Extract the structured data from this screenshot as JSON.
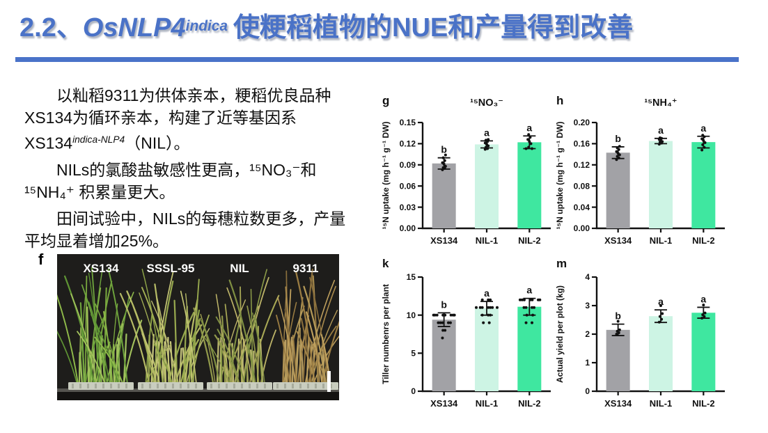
{
  "title": {
    "number": "2.2、",
    "gene": "OsNLP4",
    "gene_sup": "indica",
    "text": "使粳稻植物的NUE和产量得到改善"
  },
  "accent_color": "#4a72c7",
  "body": {
    "p1_a": "以籼稻9311为供体亲本，粳稻优良品种XS134为循环亲本，构建了近等基因系XS134",
    "p1_sup": "indica-NLP4",
    "p1_b": "（NIL）。",
    "p2": "NILs的氯酸盐敏感性更高，¹⁵NO₃⁻和¹⁵NH₄⁺ 积累量更大。",
    "p3": "田间试验中，NILs的每穗粒数更多，产量平均显着增加25%。"
  },
  "photo": {
    "panel": "f",
    "bg": "#1e1d1b",
    "label_color": "#ffffff",
    "labels": [
      "XS134",
      "SSSL-95",
      "NIL",
      "9311"
    ],
    "centers": [
      63,
      163,
      262,
      357
    ],
    "blade_palettes": [
      [
        "#5f9434",
        "#79a83e",
        "#8fba4a",
        "#a3c25c",
        "#6da23c"
      ],
      [
        "#8aa046",
        "#a3b054",
        "#b7bc66",
        "#97a84e",
        "#c3c474"
      ],
      [
        "#90984a",
        "#a8a855",
        "#bdb468",
        "#8a9a48",
        "#7f8f42"
      ],
      [
        "#9a7c42",
        "#a8894c",
        "#b59a58",
        "#8a6f3c",
        "#c0a15e"
      ]
    ],
    "stem_colors": [
      "#9fc25e",
      "#c9c87e",
      "#c2bd74",
      "#b99f62"
    ],
    "tray_color": "#c9cdbf",
    "has_scale_bar": true
  },
  "chart_data": [
    {
      "type": "bar",
      "panel": "g",
      "title": "¹⁵NO₃⁻",
      "ylabel": "¹⁵N uptake (mg h⁻¹ g⁻¹ DW)",
      "ymax": 0.15,
      "ystep": 0.03,
      "decimals": 2,
      "categories": [
        "XS134",
        "NIL-1",
        "NIL-2"
      ],
      "bars": [
        {
          "value": 0.092,
          "err": 0.008,
          "letter": "b",
          "color": "#a2a2a6",
          "points": [
            0.083,
            0.085,
            0.086,
            0.088,
            0.091,
            0.093,
            0.096,
            0.1,
            0.104
          ]
        },
        {
          "value": 0.119,
          "err": 0.005,
          "letter": "a",
          "color": "#cdf4e4",
          "points": [
            0.112,
            0.113,
            0.115,
            0.117,
            0.119,
            0.121,
            0.123,
            0.125,
            0.126
          ]
        },
        {
          "value": 0.122,
          "err": 0.009,
          "letter": "a",
          "color": "#3fe7a0",
          "points": [
            0.113,
            0.113,
            0.115,
            0.12,
            0.123,
            0.126,
            0.129,
            0.133
          ]
        }
      ]
    },
    {
      "type": "bar",
      "panel": "h",
      "title": "¹⁵NH₄⁺",
      "ylabel": "¹⁵N uptake (mg h⁻¹ g⁻¹ DW)",
      "ymax": 0.2,
      "ystep": 0.04,
      "decimals": 2,
      "categories": [
        "XS134",
        "NIL-1",
        "NIL-2"
      ],
      "bars": [
        {
          "value": 0.143,
          "err": 0.011,
          "letter": "b",
          "color": "#a2a2a6",
          "points": [
            0.13,
            0.133,
            0.136,
            0.139,
            0.142,
            0.145,
            0.149,
            0.152,
            0.155
          ]
        },
        {
          "value": 0.165,
          "err": 0.005,
          "letter": "a",
          "color": "#cdf4e4",
          "points": [
            0.159,
            0.161,
            0.163,
            0.164,
            0.166,
            0.168,
            0.17,
            0.171
          ]
        },
        {
          "value": 0.163,
          "err": 0.011,
          "letter": "a",
          "color": "#3fe7a0",
          "points": [
            0.148,
            0.153,
            0.158,
            0.162,
            0.166,
            0.169,
            0.173,
            0.176
          ]
        }
      ]
    },
    {
      "type": "bar",
      "panel": "k",
      "title": "",
      "ylabel": "Tiller numbenrs per plant",
      "ymax": 15,
      "ystep": 5,
      "decimals": 0,
      "categories": [
        "XS134",
        "NIL-1",
        "NIL-2"
      ],
      "bars": [
        {
          "value": 9.4,
          "err": 0.9,
          "letter": "b",
          "color": "#a2a2a6",
          "points": [
            7,
            8,
            8,
            9,
            9,
            9,
            9,
            9,
            10,
            10,
            10,
            10,
            10,
            10,
            10,
            10
          ]
        },
        {
          "value": 10.9,
          "err": 0.9,
          "letter": "a",
          "color": "#cdf4e4",
          "points": [
            9,
            9,
            10,
            10,
            10,
            11,
            11,
            11,
            11,
            11,
            11,
            11,
            12,
            12,
            12
          ]
        },
        {
          "value": 11.1,
          "err": 1.1,
          "letter": "a",
          "color": "#3fe7a0",
          "points": [
            9,
            9,
            10,
            10,
            11,
            11,
            11,
            11,
            12,
            12,
            12,
            12,
            12,
            12,
            12
          ]
        }
      ]
    },
    {
      "type": "bar",
      "panel": "m",
      "title": "",
      "ylabel": "Actual yield per plot (kg)",
      "ymax": 4,
      "ystep": 1,
      "decimals": 0,
      "categories": [
        "XS134",
        "NIL-1",
        "NIL-2"
      ],
      "bars": [
        {
          "value": 2.15,
          "err": 0.2,
          "letter": "b",
          "color": "#a2a2a6",
          "points": [
            2.0,
            2.05,
            2.1,
            2.15,
            2.45
          ]
        },
        {
          "value": 2.63,
          "err": 0.22,
          "letter": "a",
          "color": "#cdf4e4",
          "points": [
            2.42,
            2.52,
            2.62,
            2.72,
            3.0
          ]
        },
        {
          "value": 2.75,
          "err": 0.19,
          "letter": "a",
          "color": "#3fe7a0",
          "points": [
            2.56,
            2.62,
            2.68,
            2.74,
            3.02
          ]
        }
      ]
    }
  ]
}
